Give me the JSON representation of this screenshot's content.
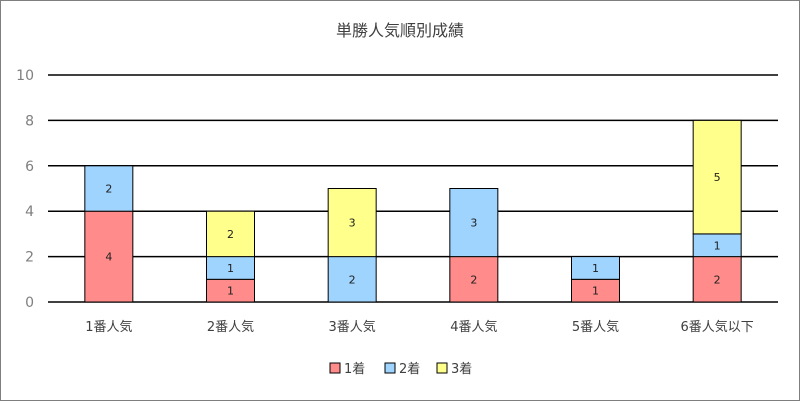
{
  "chart_data": {
    "type": "bar",
    "stacked": true,
    "title": "単勝人気順別成績",
    "categories": [
      "1番人気",
      "2番人気",
      "3番人気",
      "4番人気",
      "5番人気",
      "6番人気以下"
    ],
    "series": [
      {
        "name": "1着",
        "color": "#ff8b8b",
        "values": [
          4,
          1,
          0,
          2,
          1,
          2
        ]
      },
      {
        "name": "2着",
        "color": "#9fd4ff",
        "values": [
          2,
          1,
          2,
          3,
          1,
          1
        ]
      },
      {
        "name": "3着",
        "color": "#ffff8b",
        "values": [
          0,
          2,
          3,
          0,
          0,
          5
        ]
      }
    ],
    "ylim": [
      0,
      10
    ],
    "yticks": [
      "0",
      "2",
      "4",
      "6",
      "8",
      "10"
    ],
    "grid": true,
    "legend": "bottom"
  }
}
